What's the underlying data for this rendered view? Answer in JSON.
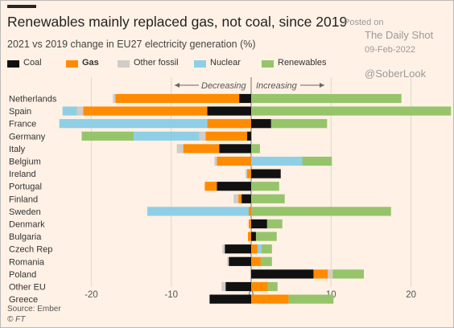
{
  "watermark": {
    "posted_on": "Posted on",
    "publisher": "The Daily Shot",
    "date": "09-Feb-2022",
    "handle": "@SoberLook"
  },
  "footer": {
    "source": "Source: Ember",
    "ft": "© FT"
  },
  "chart_data": {
    "type": "bar",
    "orientation": "horizontal",
    "stacked": true,
    "title": "Renewables mainly replaced gas, not coal, since 2019",
    "subtitle": "2021 vs 2019 change in EU27 electricity generation (%)",
    "xlim": [
      -24,
      25
    ],
    "x_ticks": [
      -20,
      -10,
      0,
      10,
      20
    ],
    "grid": true,
    "legend_position": "top-left",
    "annotations": {
      "left": "Decreasing",
      "right": "Increasing"
    },
    "categories": [
      "Netherlands",
      "Spain",
      "France",
      "Germany",
      "Italy",
      "Belgium",
      "Ireland",
      "Portugal",
      "Finland",
      "Sweden",
      "Denmark",
      "Bulgaria",
      "Czech Rep",
      "Romania",
      "Poland",
      "Other EU",
      "Greece"
    ],
    "series": [
      {
        "name": "Coal",
        "color": "#111111",
        "values": [
          -1.5,
          -5.5,
          2.5,
          -0.5,
          -4.0,
          0,
          3.7,
          -4.3,
          -1.2,
          0,
          2.0,
          0.6,
          -3.3,
          -2.8,
          7.8,
          -3.2,
          -5.2
        ]
      },
      {
        "name": "Gas",
        "color": "#ff8b00",
        "values": [
          -15.5,
          -15.5,
          -5.5,
          -5.2,
          -4.5,
          -4.3,
          -0.5,
          -1.5,
          -0.4,
          -0.3,
          -0.3,
          -0.4,
          0.8,
          1.2,
          1.8,
          2.1,
          4.7
        ]
      },
      {
        "name": "Other fossil",
        "color": "#d2ccc6",
        "values": [
          -0.3,
          -0.8,
          0,
          -0.8,
          -0.8,
          -0.3,
          -0.2,
          0,
          -0.6,
          0,
          0,
          0,
          -0.3,
          -0.2,
          0.6,
          -0.5,
          0
        ]
      },
      {
        "name": "Nuclear",
        "color": "#8fcfe6",
        "values": [
          0,
          -1.8,
          -18.5,
          -8.2,
          0,
          6.4,
          0,
          0,
          0,
          -12.7,
          0,
          0,
          0.5,
          0,
          0,
          0,
          0
        ]
      },
      {
        "name": "Renewables",
        "color": "#96c46b",
        "values": [
          18.8,
          25.0,
          7.0,
          -6.5,
          1.1,
          3.7,
          0,
          3.5,
          4.2,
          17.5,
          1.9,
          2.6,
          1.3,
          1.4,
          3.9,
          1.2,
          5.6
        ]
      }
    ]
  }
}
